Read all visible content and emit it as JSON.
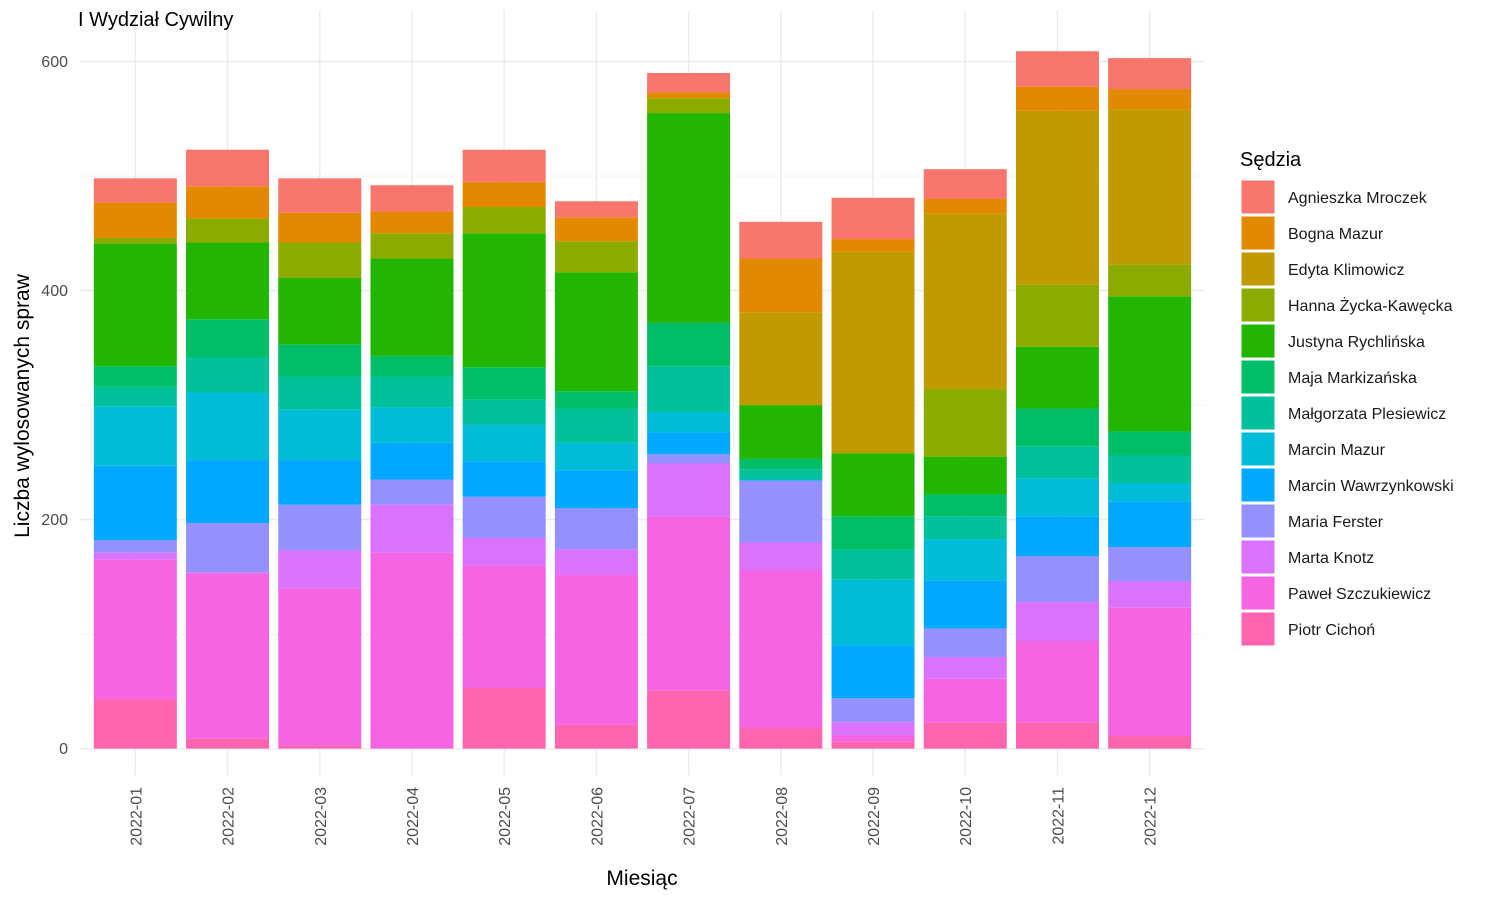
{
  "chart_data": {
    "type": "bar",
    "stacked": true,
    "title": "I Wydział Cywilny",
    "xlabel": "Miesiąc",
    "ylabel": "Liczba wylosowanych spraw",
    "ylim": [
      -23,
      645
    ],
    "yticks": [
      0,
      200,
      400,
      600
    ],
    "grid": true,
    "legend_title": "Sędzia",
    "legend_position": "right",
    "categories": [
      "2022-01",
      "2022-02",
      "2022-03",
      "2022-04",
      "2022-05",
      "2022-06",
      "2022-07",
      "2022-08",
      "2022-09",
      "2022-10",
      "2022-11",
      "2022-12"
    ],
    "series": [
      {
        "name": "Piotr Cichoń",
        "color": "#FF64B0",
        "values": [
          43,
          9,
          3,
          0,
          53,
          21,
          51,
          18,
          6,
          23,
          23,
          11
        ]
      },
      {
        "name": "Paweł Szczukiewicz",
        "color": "#F564E3",
        "values": [
          122,
          144,
          137,
          171,
          107,
          131,
          152,
          138,
          6,
          38,
          71,
          112
        ]
      },
      {
        "name": "Marta Knotz",
        "color": "#DB72FB",
        "values": [
          6,
          1,
          33,
          42,
          24,
          22,
          46,
          24,
          11,
          19,
          34,
          23
        ]
      },
      {
        "name": "Maria Ferster",
        "color": "#9590FF",
        "values": [
          11,
          43,
          40,
          22,
          36,
          36,
          8,
          54,
          21,
          25,
          40,
          30
        ]
      },
      {
        "name": "Marcin Wawrzynkowski",
        "color": "#00A9FF",
        "values": [
          65,
          55,
          39,
          32,
          31,
          33,
          19,
          1,
          46,
          42,
          35,
          40
        ]
      },
      {
        "name": "Marcin Mazur",
        "color": "#00BCD8",
        "values": [
          52,
          59,
          44,
          31,
          32,
          24,
          18,
          0,
          58,
          36,
          33,
          16
        ]
      },
      {
        "name": "Małgorzata Plesiewicz",
        "color": "#00C19A",
        "values": [
          17,
          31,
          29,
          27,
          22,
          30,
          40,
          9,
          26,
          20,
          28,
          24
        ]
      },
      {
        "name": "Maja Markizańska",
        "color": "#00BE67",
        "values": [
          18,
          33,
          28,
          18,
          28,
          15,
          38,
          9,
          29,
          19,
          33,
          21
        ]
      },
      {
        "name": "Justyna Rychlińska",
        "color": "#22B600",
        "values": [
          107,
          67,
          58,
          85,
          117,
          104,
          183,
          47,
          55,
          33,
          54,
          118
        ]
      },
      {
        "name": "Hanna Życka-Kawęcka",
        "color": "#8CAB00",
        "values": [
          5,
          21,
          31,
          22,
          23,
          27,
          13,
          0,
          0,
          59,
          54,
          28
        ]
      },
      {
        "name": "Edyta Klimowicz",
        "color": "#C09B00",
        "values": [
          0,
          0,
          0,
          0,
          0,
          0,
          0,
          81,
          176,
          153,
          152,
          135
        ]
      },
      {
        "name": "Bogna Mazur",
        "color": "#E38900",
        "values": [
          31,
          28,
          26,
          19,
          22,
          21,
          5,
          47,
          11,
          13,
          21,
          18
        ]
      },
      {
        "name": "Agnieszka Mroczek",
        "color": "#F8766D",
        "values": [
          21,
          32,
          30,
          23,
          28,
          14,
          17,
          32,
          36,
          26,
          31,
          27
        ]
      }
    ]
  }
}
